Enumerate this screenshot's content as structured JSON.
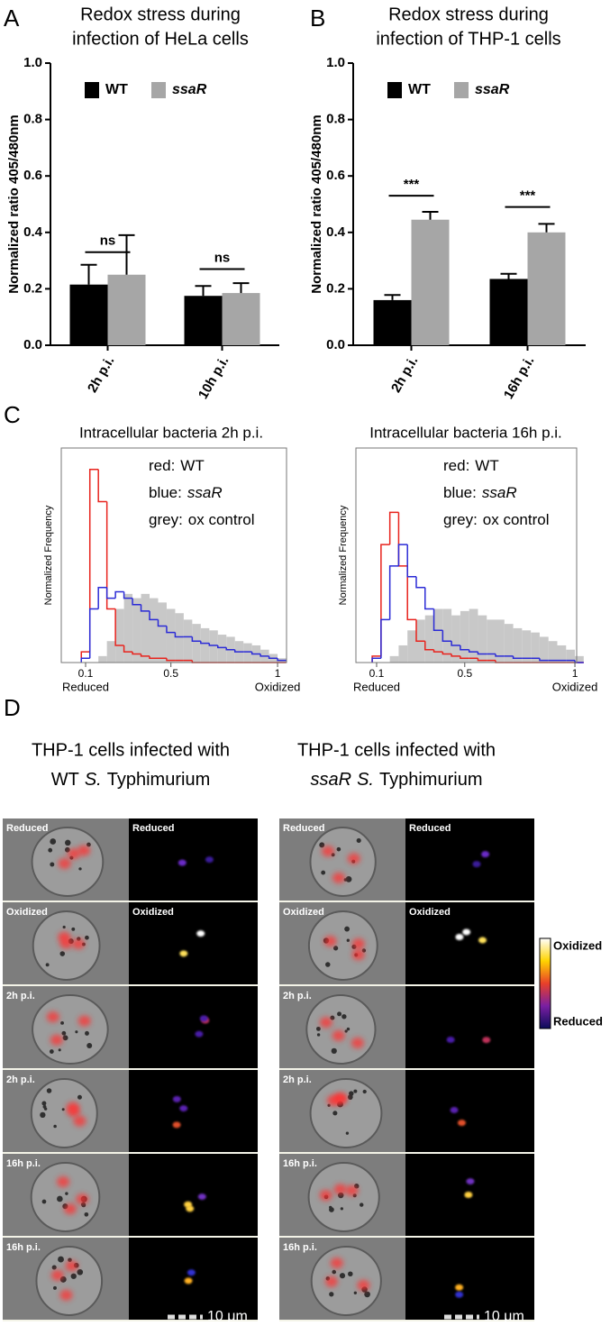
{
  "panel_labels": [
    "A",
    "B",
    "C",
    "D"
  ],
  "chart_data": [
    {
      "type": "bar",
      "title": [
        "Redox stress during",
        "infection of HeLa cells"
      ],
      "ylabel": "Normalized ratio 405/480nm",
      "categories": [
        "2h p.i.",
        "10h p.i."
      ],
      "series": [
        {
          "name": "WT",
          "color": "#000000",
          "values": [
            0.215,
            0.175
          ],
          "errors": [
            0.07,
            0.035
          ]
        },
        {
          "name": "ssaR",
          "italic": true,
          "color": "#a6a6a6",
          "values": [
            0.25,
            0.185
          ],
          "errors": [
            0.14,
            0.035
          ]
        }
      ],
      "annotations": [
        "ns",
        "ns"
      ],
      "annotation_y": [
        0.33,
        0.27
      ],
      "ylim": [
        0,
        1
      ],
      "yticks": [
        {
          "value": 0,
          "label": "0.0"
        },
        {
          "value": 0.2,
          "label": "0.2"
        },
        {
          "value": 0.4,
          "label": "0.4"
        },
        {
          "value": 0.6,
          "label": "0.6"
        },
        {
          "value": 0.8,
          "label": "0.8"
        },
        {
          "value": 1,
          "label": "1.0"
        }
      ]
    },
    {
      "type": "bar",
      "title": [
        "Redox stress during",
        "infection of THP-1 cells"
      ],
      "ylabel": "Normalized ratio 405/480nm",
      "categories": [
        "2h p.i.",
        "16h p.i."
      ],
      "series": [
        {
          "name": "WT",
          "color": "#000000",
          "values": [
            0.16,
            0.235
          ],
          "errors": [
            0.018,
            0.018
          ]
        },
        {
          "name": "ssaR",
          "italic": true,
          "color": "#a6a6a6",
          "values": [
            0.445,
            0.4
          ],
          "errors": [
            0.028,
            0.03
          ]
        }
      ],
      "annotations": [
        "***",
        "***"
      ],
      "annotation_y": [
        0.53,
        0.49
      ],
      "ylim": [
        0,
        1
      ],
      "yticks": [
        {
          "value": 0,
          "label": "0.0"
        },
        {
          "value": 0.2,
          "label": "0.2"
        },
        {
          "value": 0.4,
          "label": "0.4"
        },
        {
          "value": 0.6,
          "label": "0.6"
        },
        {
          "value": 0.8,
          "label": "0.8"
        },
        {
          "value": 1,
          "label": "1.0"
        }
      ]
    },
    {
      "type": "histogram",
      "title": "Intracellular bacteria 2h p.i.",
      "ylabel": "Normalized Frequency",
      "bins": [
        0.08,
        0.12,
        0.16,
        0.2,
        0.24,
        0.28,
        0.32,
        0.36,
        0.4,
        0.44,
        0.48,
        0.52,
        0.56,
        0.6,
        0.64,
        0.68,
        0.72,
        0.76,
        0.8,
        0.84,
        0.88,
        0.92,
        0.96,
        1.0,
        1.04
      ],
      "series": [
        {
          "legend_key": "red:",
          "name": "WT",
          "color": "#e8231d",
          "values": [
            5,
            90,
            75,
            25,
            8,
            5,
            4,
            3,
            2,
            2,
            1,
            1,
            1,
            0,
            0,
            0,
            0,
            0,
            0,
            0,
            0,
            0,
            0,
            0
          ]
        },
        {
          "legend_key": "blue:",
          "name": "ssaR",
          "italic": true,
          "color": "#2b2bd6",
          "values": [
            2,
            25,
            35,
            30,
            33,
            30,
            27,
            24,
            20,
            17,
            14,
            12,
            12,
            10,
            9,
            8,
            7,
            6,
            5,
            5,
            4,
            3,
            2,
            1
          ]
        },
        {
          "legend_key": "grey:",
          "name": "ox control",
          "color": "#c8c8c8",
          "fill": true,
          "values": [
            0,
            0,
            3,
            10,
            25,
            32,
            30,
            32,
            30,
            28,
            25,
            23,
            20,
            18,
            16,
            15,
            13,
            12,
            10,
            9,
            8,
            6,
            4,
            2
          ]
        }
      ],
      "xlim": [
        -0.014,
        1.042
      ],
      "xticks": [
        0.1,
        0.5,
        1
      ],
      "x_end_labels": [
        "Reduced",
        "Oxidized"
      ],
      "ylim": [
        0,
        100
      ]
    },
    {
      "type": "histogram",
      "title": "Intracellular bacteria 16h p.i.",
      "ylabel": "Normalized Frequency",
      "bins": [
        0.08,
        0.12,
        0.16,
        0.2,
        0.24,
        0.28,
        0.32,
        0.36,
        0.4,
        0.44,
        0.48,
        0.52,
        0.56,
        0.6,
        0.64,
        0.68,
        0.72,
        0.76,
        0.8,
        0.84,
        0.88,
        0.92,
        0.96,
        1.0,
        1.04
      ],
      "series": [
        {
          "legend_key": "red:",
          "name": "WT",
          "color": "#e8231d",
          "values": [
            3,
            55,
            70,
            45,
            20,
            10,
            6,
            5,
            4,
            3,
            2,
            2,
            1,
            1,
            0,
            0,
            0,
            0,
            0,
            0,
            0,
            0,
            0,
            0
          ]
        },
        {
          "legend_key": "blue:",
          "name": "ssaR",
          "italic": true,
          "color": "#2b2bd6",
          "values": [
            2,
            20,
            45,
            55,
            40,
            35,
            25,
            15,
            10,
            8,
            6,
            5,
            4,
            4,
            3,
            3,
            2,
            2,
            2,
            1,
            1,
            1,
            1,
            0
          ]
        },
        {
          "legend_key": "grey:",
          "name": "ox control",
          "color": "#c8c8c8",
          "fill": true,
          "values": [
            0,
            0,
            3,
            8,
            15,
            20,
            22,
            25,
            25,
            22,
            24,
            25,
            22,
            20,
            20,
            18,
            16,
            15,
            14,
            12,
            10,
            8,
            6,
            3
          ]
        }
      ],
      "xlim": [
        0.006,
        1.008
      ],
      "xticks": [
        0.1,
        0.5,
        1
      ],
      "x_end_labels": [
        "Reduced",
        "Oxidized"
      ],
      "ylim": [
        0,
        100
      ]
    }
  ],
  "micrographs": {
    "columns": [
      {
        "title": "THP-1 cells infected with",
        "strain": "WT",
        "genus": "S.",
        "species": "Typhimurium",
        "rows": [
          [
            "Reduced",
            "Reduced"
          ],
          [
            "Oxidized",
            "Oxidized"
          ],
          [
            "2h p.i."
          ],
          [
            "2h p.i."
          ],
          [
            "16h p.i."
          ],
          [
            "16h p.i."
          ]
        ],
        "scale_bar": "10 μm"
      },
      {
        "title": "THP-1 cells infected with",
        "strain": "ssaR",
        "strain_italic": true,
        "genus": "S.",
        "species": "Typhimurium",
        "rows": [
          [
            "Reduced",
            "Reduced"
          ],
          [
            "Oxidized",
            "Oxidized"
          ],
          [
            "2h p.i."
          ],
          [
            "2h p.i."
          ],
          [
            "16h p.i."
          ],
          [
            "16h p.i."
          ]
        ],
        "scale_bar": "10 μm"
      }
    ],
    "colorbar": [
      "Oxidized",
      "Reduced"
    ]
  }
}
